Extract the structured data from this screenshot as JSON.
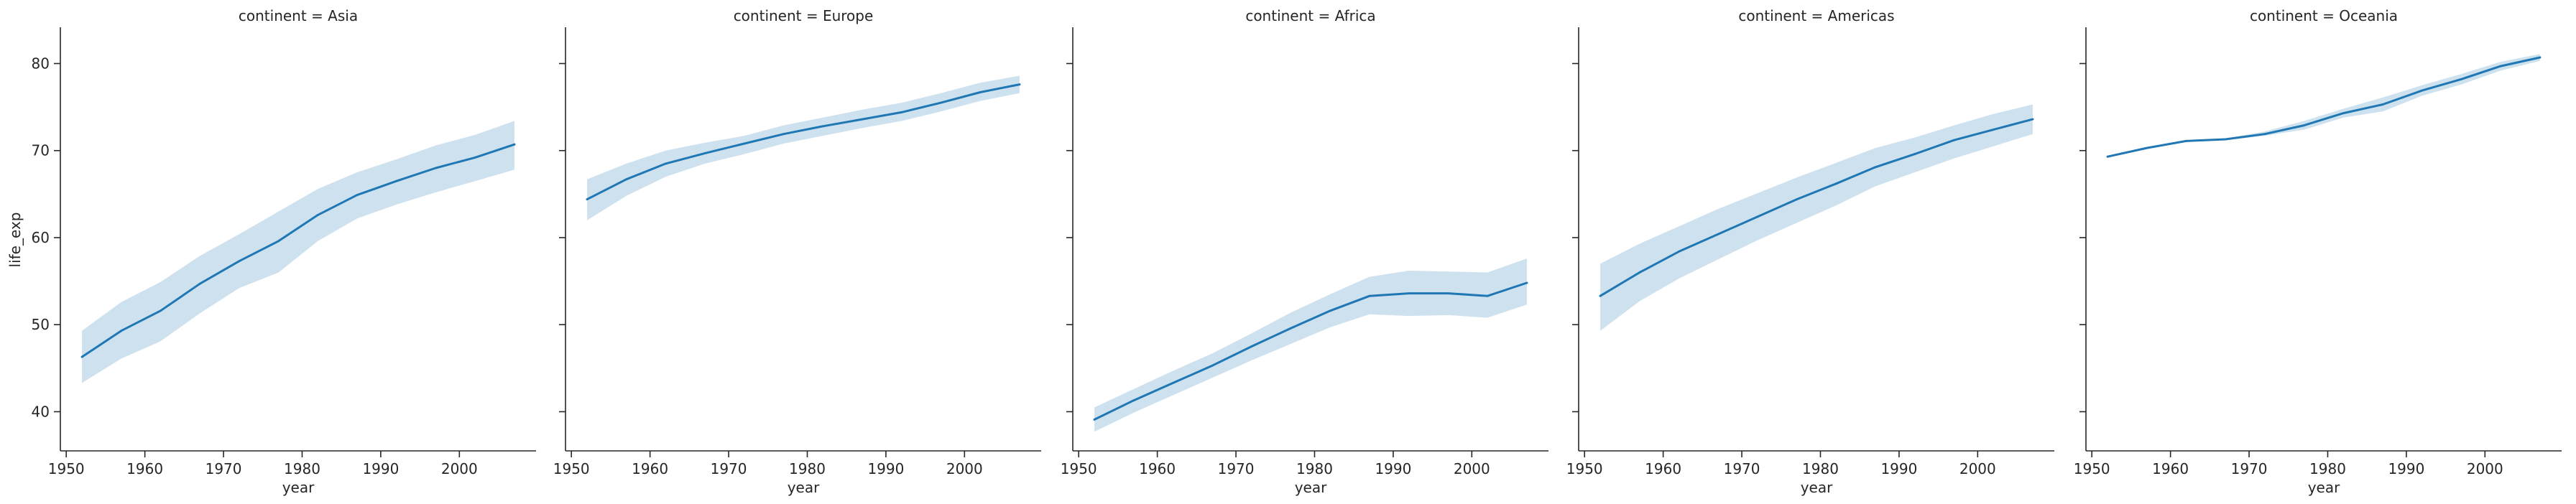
{
  "chart_data": [
    {
      "type": "line",
      "title": "continent = Asia",
      "xlabel": "year",
      "ylabel": "life_exp",
      "xlim": [
        1949.25,
        2009.75
      ],
      "ylim": [
        35.5,
        84
      ],
      "xticks": [
        1950,
        1960,
        1970,
        1980,
        1990,
        2000
      ],
      "yticks": [
        40,
        50,
        60,
        70,
        80
      ],
      "x": [
        1952,
        1957,
        1962,
        1967,
        1972,
        1977,
        1982,
        1987,
        1992,
        1997,
        2002,
        2007
      ],
      "series": [
        {
          "values": [
            46.3,
            49.3,
            51.6,
            54.7,
            57.3,
            59.6,
            62.6,
            64.9,
            66.5,
            68.0,
            69.2,
            70.7
          ]
        }
      ],
      "ci_low": [
        43.3,
        46.1,
        48.1,
        51.3,
        54.2,
        56.0,
        59.6,
        62.2,
        63.8,
        65.2,
        66.5,
        67.8
      ],
      "ci_high": [
        49.3,
        52.6,
        54.9,
        57.9,
        60.4,
        63.0,
        65.6,
        67.5,
        69.0,
        70.6,
        71.8,
        73.4
      ],
      "grid": false,
      "color": "#1f77b4",
      "band_color": "#1f77b4"
    },
    {
      "type": "line",
      "title": "continent = Europe",
      "xlabel": "year",
      "ylabel": "",
      "xlim": [
        1949.25,
        2009.75
      ],
      "ylim": [
        35.5,
        84
      ],
      "xticks": [
        1950,
        1960,
        1970,
        1980,
        1990,
        2000
      ],
      "yticks": [
        40,
        50,
        60,
        70,
        80
      ],
      "x": [
        1952,
        1957,
        1962,
        1967,
        1972,
        1977,
        1982,
        1987,
        1992,
        1997,
        2002,
        2007
      ],
      "series": [
        {
          "values": [
            64.4,
            66.7,
            68.5,
            69.7,
            70.8,
            71.9,
            72.8,
            73.6,
            74.4,
            75.5,
            76.7,
            77.6
          ]
        }
      ],
      "ci_low": [
        62.0,
        64.8,
        67.0,
        68.5,
        69.6,
        70.8,
        71.7,
        72.6,
        73.4,
        74.5,
        75.7,
        76.6
      ],
      "ci_high": [
        66.7,
        68.5,
        70.0,
        70.9,
        71.7,
        72.9,
        73.8,
        74.7,
        75.5,
        76.6,
        77.8,
        78.6
      ],
      "grid": false,
      "color": "#1f77b4",
      "band_color": "#1f77b4"
    },
    {
      "type": "line",
      "title": "continent = Africa",
      "xlabel": "year",
      "ylabel": "",
      "xlim": [
        1949.25,
        2009.75
      ],
      "ylim": [
        35.5,
        84
      ],
      "xticks": [
        1950,
        1960,
        1970,
        1980,
        1990,
        2000
      ],
      "yticks": [
        40,
        50,
        60,
        70,
        80
      ],
      "x": [
        1952,
        1957,
        1962,
        1967,
        1972,
        1977,
        1982,
        1987,
        1992,
        1997,
        2002,
        2007
      ],
      "series": [
        {
          "values": [
            39.1,
            41.3,
            43.3,
            45.3,
            47.5,
            49.6,
            51.6,
            53.3,
            53.6,
            53.6,
            53.3,
            54.8
          ]
        }
      ],
      "ci_low": [
        37.7,
        39.9,
        41.9,
        43.9,
        45.9,
        47.8,
        49.7,
        51.2,
        51.0,
        51.1,
        50.8,
        52.3
      ],
      "ci_high": [
        40.5,
        42.6,
        44.7,
        46.7,
        49.0,
        51.4,
        53.5,
        55.5,
        56.2,
        56.1,
        56.0,
        57.6
      ],
      "grid": false,
      "color": "#1f77b4",
      "band_color": "#1f77b4"
    },
    {
      "type": "line",
      "title": "continent = Americas",
      "xlabel": "year",
      "ylabel": "",
      "xlim": [
        1949.25,
        2009.75
      ],
      "ylim": [
        35.5,
        84
      ],
      "xticks": [
        1950,
        1960,
        1970,
        1980,
        1990,
        2000
      ],
      "yticks": [
        40,
        50,
        60,
        70,
        80
      ],
      "x": [
        1952,
        1957,
        1962,
        1967,
        1972,
        1977,
        1982,
        1987,
        1992,
        1997,
        2002,
        2007
      ],
      "series": [
        {
          "values": [
            53.3,
            56.0,
            58.4,
            60.4,
            62.4,
            64.4,
            66.2,
            68.1,
            69.6,
            71.2,
            72.4,
            73.6
          ]
        }
      ],
      "ci_low": [
        49.3,
        52.7,
        55.3,
        57.5,
        59.7,
        61.7,
        63.7,
        65.9,
        67.5,
        69.1,
        70.5,
        71.9
      ],
      "ci_high": [
        57.0,
        59.3,
        61.3,
        63.3,
        65.1,
        66.9,
        68.6,
        70.3,
        71.5,
        72.9,
        74.2,
        75.3
      ],
      "grid": false,
      "color": "#1f77b4",
      "band_color": "#1f77b4"
    },
    {
      "type": "line",
      "title": "continent = Oceania",
      "xlabel": "year",
      "ylabel": "",
      "xlim": [
        1949.25,
        2009.75
      ],
      "ylim": [
        35.5,
        84
      ],
      "xticks": [
        1950,
        1960,
        1970,
        1980,
        1990,
        2000
      ],
      "yticks": [
        40,
        50,
        60,
        70,
        80
      ],
      "x": [
        1952,
        1957,
        1962,
        1967,
        1972,
        1977,
        1982,
        1987,
        1992,
        1997,
        2002,
        2007
      ],
      "series": [
        {
          "values": [
            69.3,
            70.3,
            71.1,
            71.3,
            71.9,
            72.9,
            74.3,
            75.3,
            76.9,
            78.2,
            79.7,
            80.7
          ]
        }
      ],
      "ci_low": [
        69.2,
        70.2,
        71.0,
        71.2,
        71.7,
        72.4,
        73.8,
        74.5,
        76.3,
        77.6,
        79.2,
        80.3
      ],
      "ci_high": [
        69.4,
        70.4,
        71.2,
        71.4,
        72.2,
        73.4,
        74.8,
        76.1,
        77.5,
        78.8,
        80.2,
        81.1
      ],
      "grid": false,
      "color": "#1f77b4",
      "band_color": "#1f77b4"
    }
  ]
}
